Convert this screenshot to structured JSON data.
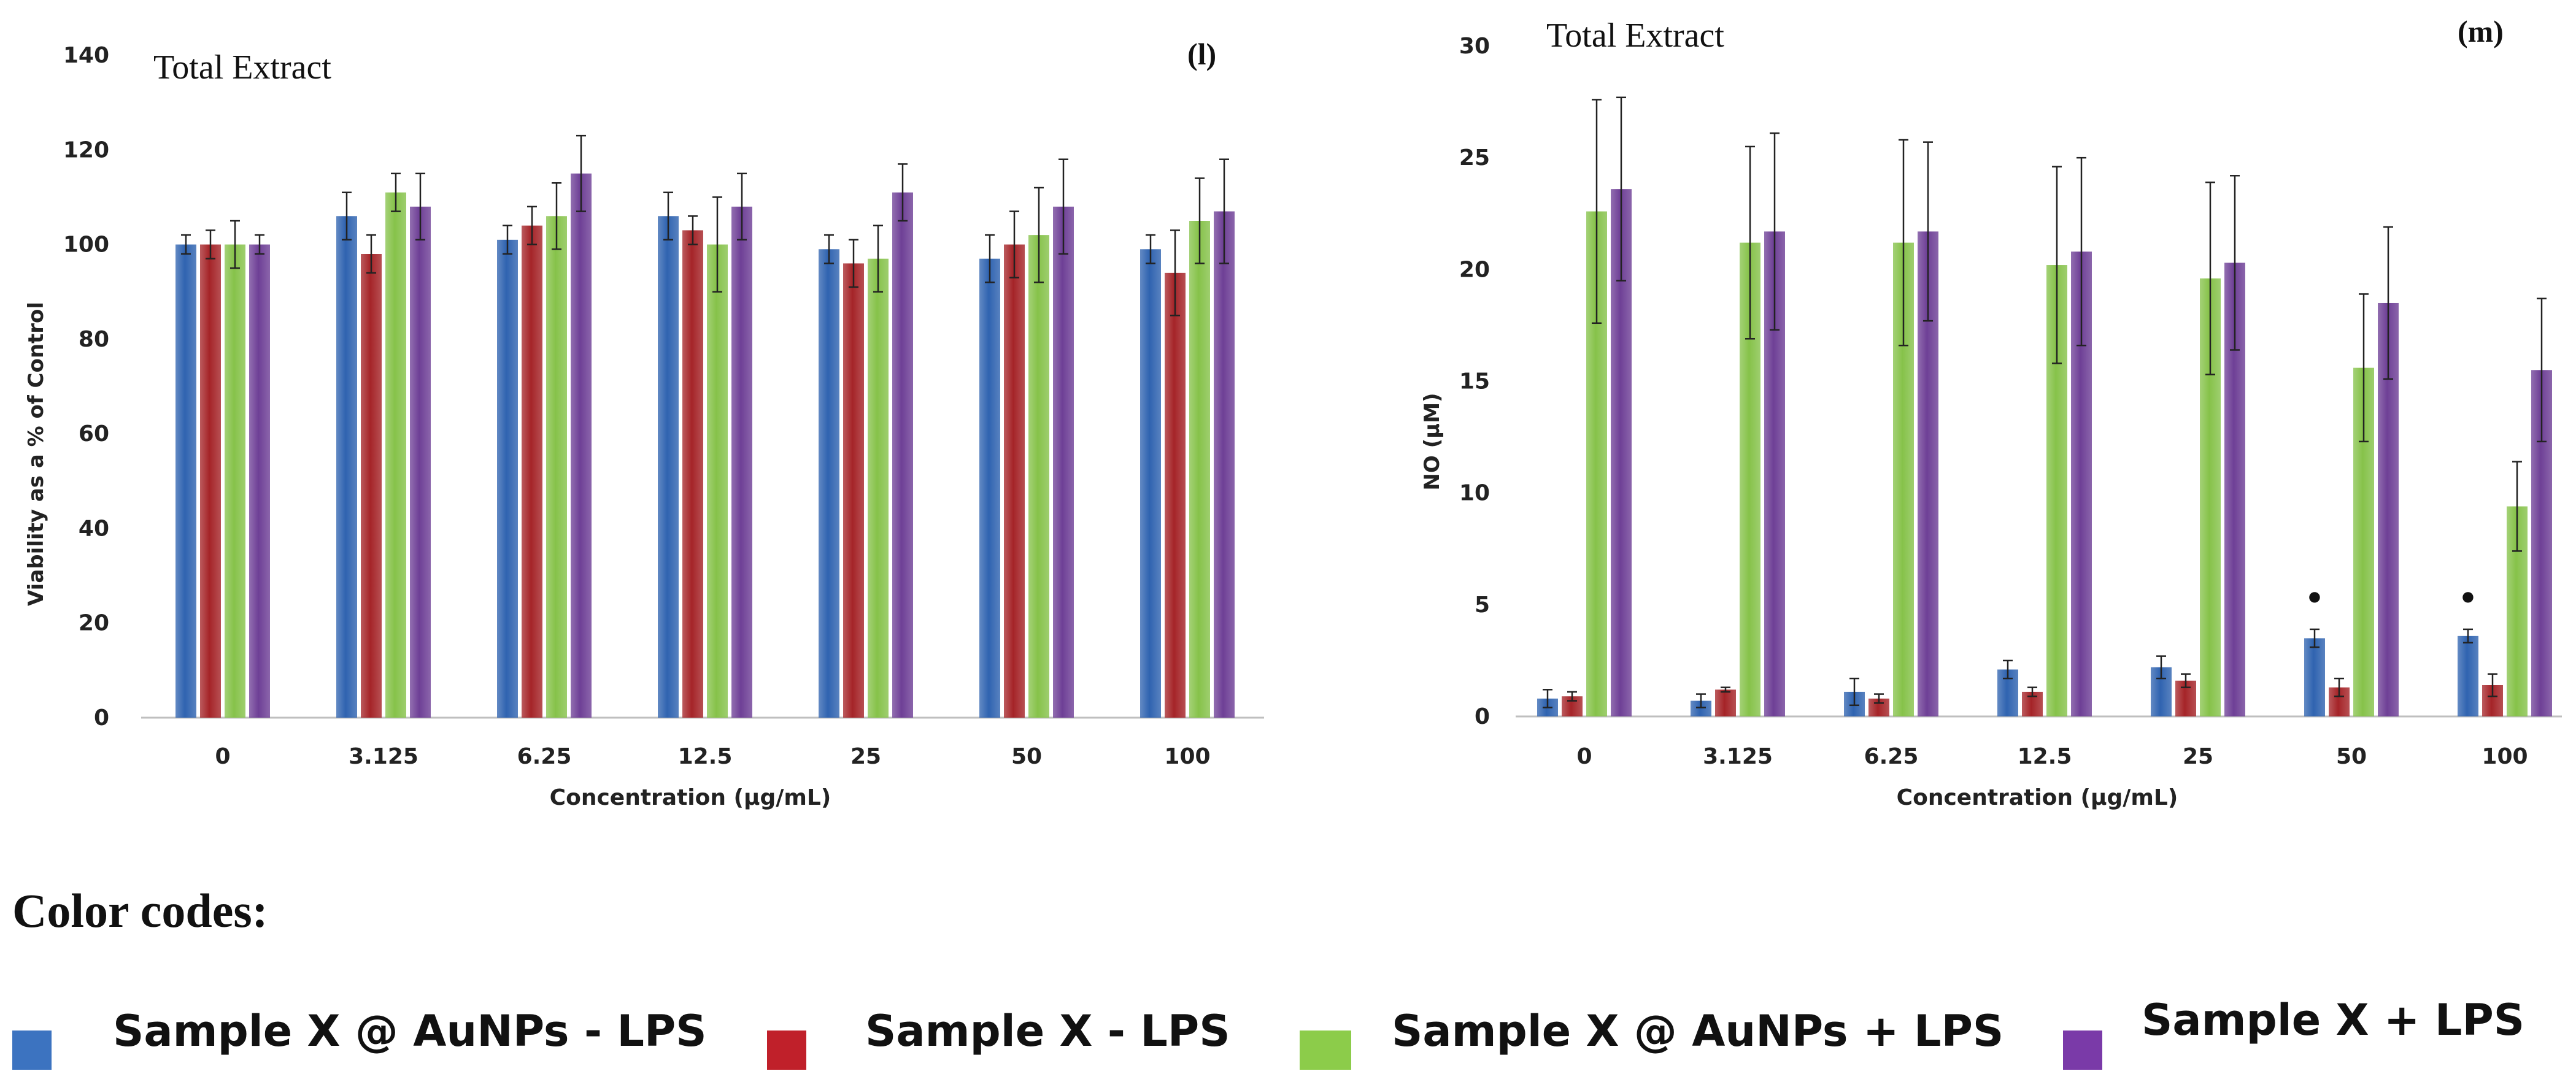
{
  "chart_data": [
    {
      "type": "bar",
      "title": "Total Extract",
      "panel_label": "(l)",
      "xlabel": "Concentration (µg/mL)",
      "ylabel": "Viability as a % of Control",
      "ylim": [
        0,
        140
      ],
      "yticks": [
        "0",
        "20",
        "40",
        "60",
        "80",
        "100",
        "120",
        "140"
      ],
      "categories": [
        "0",
        "3.125",
        "6.25",
        "12.5",
        "25",
        "50",
        "100"
      ],
      "grid": false,
      "series": [
        {
          "name": "Sample X @ AuNPs - LPS",
          "values": [
            100,
            106,
            101,
            106,
            99,
            97,
            99
          ],
          "errors": [
            2,
            5,
            3,
            5,
            3,
            5,
            3
          ]
        },
        {
          "name": "Sample X - LPS",
          "values": [
            100,
            98,
            104,
            103,
            96,
            100,
            94
          ],
          "errors": [
            3,
            4,
            4,
            3,
            5,
            7,
            9
          ]
        },
        {
          "name": "Sample X @ AuNPs + LPS",
          "values": [
            100,
            111,
            106,
            100,
            97,
            102,
            105
          ],
          "errors": [
            5,
            4,
            7,
            10,
            7,
            10,
            9
          ]
        },
        {
          "name": "Sample X + LPS",
          "values": [
            100,
            108,
            115,
            108,
            111,
            108,
            107
          ],
          "errors": [
            2,
            7,
            8,
            7,
            6,
            10,
            11
          ]
        }
      ]
    },
    {
      "type": "bar",
      "title": "Total Extract",
      "panel_label": "(m)",
      "xlabel": "Concentration (µg/mL)",
      "ylabel": "NO (µM)",
      "ylim": [
        0,
        30
      ],
      "yticks": [
        "0",
        "5",
        "10",
        "15",
        "20",
        "25",
        "30"
      ],
      "categories": [
        "0",
        "3.125",
        "6.25",
        "12.5",
        "25",
        "50",
        "100"
      ],
      "grid": false,
      "series": [
        {
          "name": "Sample X @ AuNPs - LPS",
          "values": [
            0.8,
            0.7,
            1.1,
            2.1,
            2.2,
            3.5,
            3.6
          ],
          "errors": [
            0.4,
            0.3,
            0.6,
            0.4,
            0.5,
            0.4,
            0.3
          ]
        },
        {
          "name": "Sample X - LPS",
          "values": [
            0.9,
            1.2,
            0.8,
            1.1,
            1.6,
            1.3,
            1.4
          ],
          "errors": [
            0.2,
            0.1,
            0.2,
            0.2,
            0.3,
            0.4,
            0.5
          ]
        },
        {
          "name": "Sample X @ AuNPs + LPS",
          "values": [
            22.6,
            21.2,
            21.2,
            20.2,
            19.6,
            15.6,
            9.4
          ],
          "errors": [
            5.0,
            4.3,
            4.6,
            4.4,
            4.3,
            3.3,
            2.0
          ]
        },
        {
          "name": "Sample X + LPS",
          "values": [
            23.6,
            21.7,
            21.7,
            20.8,
            20.3,
            18.5,
            15.5
          ],
          "errors": [
            4.1,
            4.4,
            4.0,
            4.2,
            3.9,
            3.4,
            3.2
          ]
        }
      ],
      "annotations": [
        {
          "text": "•",
          "category": "50",
          "series": 0
        },
        {
          "text": "•",
          "category": "100",
          "series": 0
        }
      ]
    }
  ],
  "legend": {
    "title": "Color codes:",
    "items": [
      {
        "label": "Sample X @ AuNPs - LPS",
        "color": "#3c73c0"
      },
      {
        "label": "Sample X - LPS",
        "color": "#c0202a"
      },
      {
        "label": "Sample X @ AuNPs + LPS",
        "color": "#8ccc4a"
      },
      {
        "label": "Sample X + LPS",
        "color": "#7a3aa8"
      }
    ]
  },
  "colors": {
    "series": [
      "#2f63b0",
      "#a52428",
      "#86c24a",
      "#6e3f96"
    ],
    "axis": "#bfbfbf",
    "error": "#222222"
  }
}
